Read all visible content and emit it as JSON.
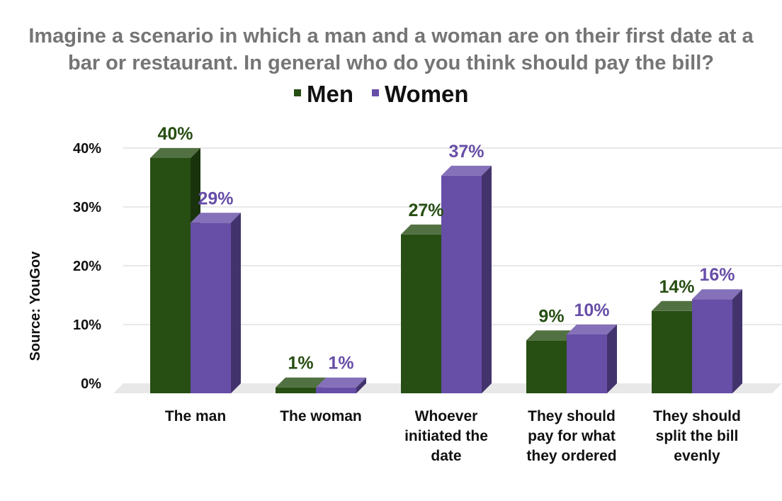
{
  "chart_data": {
    "type": "bar",
    "title_lines": [
      "Imagine a scenario in which a man and a woman are on their first date at a",
      "bar or restaurant. In general who do you think should pay the bill?"
    ],
    "ylabel": "Source: YouGov",
    "ylim": [
      0,
      40
    ],
    "yticks": [
      0,
      10,
      20,
      30,
      40
    ],
    "ytick_labels": [
      "0%",
      "10%",
      "20%",
      "30%",
      "40%"
    ],
    "grid": true,
    "legend_position": "top-center",
    "categories": [
      [
        "The man"
      ],
      [
        "The woman"
      ],
      [
        "Whoever",
        "initiated the",
        "date"
      ],
      [
        "They should",
        "pay for what",
        "they ordered"
      ],
      [
        "They should",
        "split the bill",
        "evenly"
      ]
    ],
    "series": [
      {
        "name": "Men",
        "color": "#274e13",
        "values": [
          40,
          1,
          27,
          9,
          14
        ],
        "labels": [
          "40%",
          "1%",
          "27%",
          "9%",
          "14%"
        ]
      },
      {
        "name": "Women",
        "color": "#674ea7",
        "values": [
          29,
          1,
          37,
          10,
          16
        ],
        "labels": [
          "29%",
          "1%",
          "37%",
          "10%",
          "16%"
        ]
      }
    ]
  }
}
